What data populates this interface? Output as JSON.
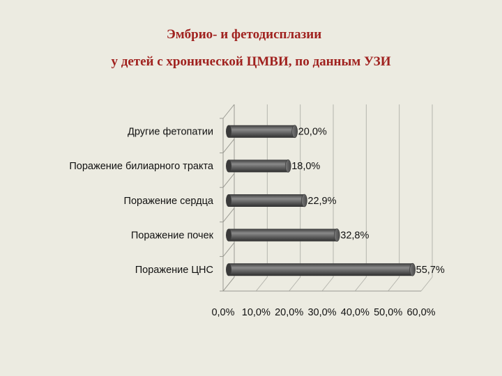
{
  "title_line1": "Эмбрио- и фетодисплазии",
  "title_line2": "у детей  с хронической ЦМВИ, по данным УЗИ",
  "chart_data": {
    "type": "bar",
    "orientation": "horizontal",
    "style": "3d-cylinder",
    "categories": [
      "Другие фетопатии",
      "Поражение билиарного тракта",
      "Поражение сердца",
      "Поражение почек",
      "Поражение ЦНС"
    ],
    "values": [
      20.0,
      18.0,
      22.9,
      32.8,
      55.7
    ],
    "value_labels": [
      "20,0%",
      "18,0%",
      "22,9%",
      "32,8%",
      "55,7%"
    ],
    "xlim": [
      0,
      60
    ],
    "x_ticks": [
      "0,0%",
      "10,0%",
      "20,0%",
      "30,0%",
      "40,0%",
      "50,0%",
      "60,0%"
    ],
    "grid": true,
    "bar_color": "#5a5a5a"
  }
}
